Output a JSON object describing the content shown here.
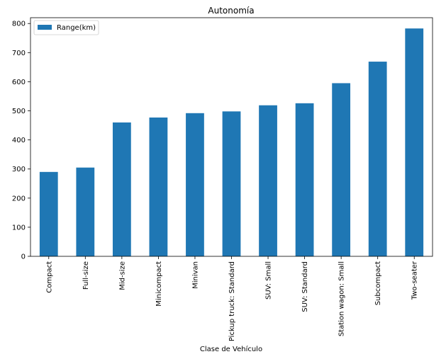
{
  "chart_data": {
    "type": "bar",
    "title": "Autonomía",
    "xlabel": "Clase de Vehículo",
    "ylabel": "",
    "ylim": [
      0,
      820
    ],
    "yticks": [
      0,
      100,
      200,
      300,
      400,
      500,
      600,
      700,
      800
    ],
    "categories": [
      "Compact",
      "Full-size",
      "Mid-size",
      "Minicompact",
      "Minivan",
      "Pickup truck: Standard",
      "SUV: Small",
      "SUV: Standard",
      "Station wagon: Small",
      "Subcompact",
      "Two-seater"
    ],
    "series": [
      {
        "name": "Range(km)",
        "color": "#1f77b4",
        "values": [
          290,
          305,
          460,
          477,
          492,
          498,
          519,
          526,
          595,
          669,
          783
        ]
      }
    ],
    "legend_position": "top-left",
    "grid": false
  }
}
